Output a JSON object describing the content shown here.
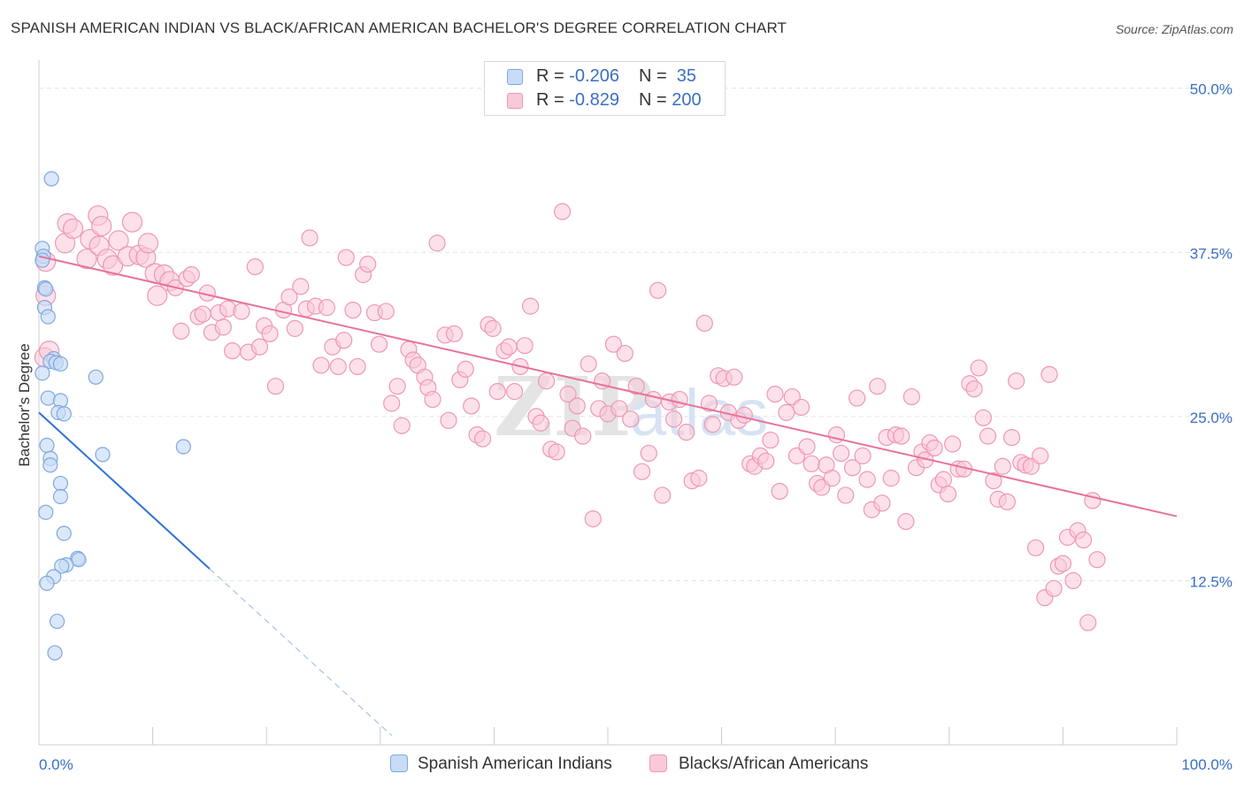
{
  "header": {
    "title": "SPANISH AMERICAN INDIAN VS BLACK/AFRICAN AMERICAN BACHELOR'S DEGREE CORRELATION CHART",
    "source": "Source: ZipAtlas.com"
  },
  "colors": {
    "blue_fill": "#c8dcf6",
    "blue_stroke": "#7fa8e0",
    "blue_line": "#2f72d2",
    "pink_fill": "#f9c9d8",
    "pink_stroke": "#ee98b3",
    "pink_line": "#e8739a",
    "axis_value": "#3a6fc4",
    "grid": "#e2e2e2"
  },
  "legend": {
    "row1": {
      "r_label": "R = ",
      "r_value": "-0.206",
      "n_label": "N = ",
      "n_value": " 35"
    },
    "row2": {
      "r_label": "R = ",
      "r_value": "-0.829",
      "n_label": "N = ",
      "n_value": "200"
    }
  },
  "watermark": {
    "zip": "ZIP",
    "atlas": "atlas"
  },
  "chart_data": {
    "type": "scatter",
    "title": "SPANISH AMERICAN INDIAN VS BLACK/AFRICAN AMERICAN BACHELOR'S DEGREE CORRELATION CHART",
    "ylabel": "Bachelor's Degree",
    "xlabel": "",
    "xlim": [
      0,
      100
    ],
    "ylim": [
      0,
      52
    ],
    "x_tick_labels": [
      "0.0%",
      "100.0%"
    ],
    "y_ticks": [
      12.5,
      25.0,
      37.5,
      50.0
    ],
    "y_tick_labels": [
      "12.5%",
      "25.0%",
      "37.5%",
      "50.0%"
    ],
    "legend_position": "top-center",
    "series": [
      {
        "name": "Spanish American Indians",
        "color": "#7fa8e0",
        "R": -0.206,
        "N": 35,
        "trend": {
          "x0": 0,
          "y0": 25.3,
          "x1": 15,
          "y1": 13.4,
          "dashed_to_x": 31
        },
        "points": [
          [
            1.1,
            43.1
          ],
          [
            0.3,
            37.8
          ],
          [
            0.4,
            37.2
          ],
          [
            0.3,
            36.9
          ],
          [
            0.5,
            34.8
          ],
          [
            0.6,
            34.7
          ],
          [
            0.5,
            33.3
          ],
          [
            0.8,
            32.6
          ],
          [
            1.3,
            29.4
          ],
          [
            1.0,
            29.2
          ],
          [
            1.5,
            29.1
          ],
          [
            1.9,
            29.0
          ],
          [
            0.3,
            28.3
          ],
          [
            5.0,
            28.0
          ],
          [
            0.8,
            26.4
          ],
          [
            1.9,
            26.2
          ],
          [
            1.7,
            25.3
          ],
          [
            2.2,
            25.2
          ],
          [
            0.7,
            22.8
          ],
          [
            12.7,
            22.7
          ],
          [
            5.6,
            22.1
          ],
          [
            1.0,
            21.8
          ],
          [
            1.0,
            21.3
          ],
          [
            1.9,
            19.9
          ],
          [
            1.9,
            18.9
          ],
          [
            0.6,
            17.7
          ],
          [
            2.2,
            16.1
          ],
          [
            3.4,
            14.2
          ],
          [
            3.5,
            14.1
          ],
          [
            2.4,
            13.7
          ],
          [
            2.0,
            13.6
          ],
          [
            1.3,
            12.8
          ],
          [
            0.7,
            12.3
          ],
          [
            1.6,
            9.4
          ],
          [
            1.4,
            7.0
          ]
        ]
      },
      {
        "name": "Blacks/African Americans",
        "color": "#ee98b3",
        "R": -0.829,
        "N": 200,
        "trend": {
          "x0": 0,
          "y0": 37.2,
          "x1": 100,
          "y1": 17.4
        },
        "points": [
          [
            0.6,
            36.8
          ],
          [
            0.6,
            34.2
          ],
          [
            0.5,
            29.5
          ],
          [
            2.3,
            38.2
          ],
          [
            2.5,
            39.7
          ],
          [
            3.0,
            39.3
          ],
          [
            4.2,
            37.0
          ],
          [
            4.5,
            38.5
          ],
          [
            5.2,
            40.3
          ],
          [
            5.5,
            39.5
          ],
          [
            5.3,
            38.0
          ],
          [
            6.0,
            37.0
          ],
          [
            6.5,
            36.5
          ],
          [
            7.0,
            38.4
          ],
          [
            7.8,
            37.2
          ],
          [
            8.2,
            39.8
          ],
          [
            8.8,
            37.3
          ],
          [
            9.4,
            37.1
          ],
          [
            9.6,
            38.2
          ],
          [
            10.2,
            35.9
          ],
          [
            10.4,
            34.2
          ],
          [
            11.0,
            35.8
          ],
          [
            11.5,
            35.3
          ],
          [
            12.0,
            34.8
          ],
          [
            12.5,
            31.5
          ],
          [
            13.0,
            35.5
          ],
          [
            13.4,
            35.8
          ],
          [
            14.0,
            32.6
          ],
          [
            14.4,
            32.8
          ],
          [
            14.8,
            34.4
          ],
          [
            15.2,
            31.4
          ],
          [
            15.8,
            32.9
          ],
          [
            16.2,
            31.8
          ],
          [
            16.6,
            33.2
          ],
          [
            17.0,
            30.0
          ],
          [
            17.8,
            33.0
          ],
          [
            18.4,
            29.9
          ],
          [
            19.0,
            36.4
          ],
          [
            19.4,
            30.3
          ],
          [
            19.8,
            31.9
          ],
          [
            20.3,
            31.3
          ],
          [
            20.8,
            27.3
          ],
          [
            21.5,
            33.1
          ],
          [
            22.0,
            34.1
          ],
          [
            22.5,
            31.7
          ],
          [
            23.0,
            34.9
          ],
          [
            23.5,
            33.2
          ],
          [
            23.8,
            38.6
          ],
          [
            24.3,
            33.4
          ],
          [
            24.8,
            28.9
          ],
          [
            25.3,
            33.3
          ],
          [
            25.8,
            30.3
          ],
          [
            26.3,
            28.8
          ],
          [
            26.8,
            30.8
          ],
          [
            27.0,
            37.1
          ],
          [
            27.6,
            33.1
          ],
          [
            28.0,
            28.8
          ],
          [
            28.5,
            35.8
          ],
          [
            28.9,
            36.6
          ],
          [
            29.5,
            32.9
          ],
          [
            29.9,
            30.5
          ],
          [
            30.5,
            33.0
          ],
          [
            31.0,
            26.0
          ],
          [
            31.5,
            27.3
          ],
          [
            31.9,
            24.3
          ],
          [
            32.5,
            30.1
          ],
          [
            32.9,
            29.3
          ],
          [
            33.3,
            28.9
          ],
          [
            33.9,
            28.0
          ],
          [
            34.2,
            27.2
          ],
          [
            34.6,
            26.3
          ],
          [
            35.0,
            38.2
          ],
          [
            35.7,
            31.2
          ],
          [
            36.0,
            24.7
          ],
          [
            36.5,
            31.3
          ],
          [
            37.0,
            27.8
          ],
          [
            37.5,
            28.6
          ],
          [
            38.0,
            25.8
          ],
          [
            38.5,
            23.6
          ],
          [
            39.0,
            23.3
          ],
          [
            39.5,
            32.0
          ],
          [
            39.9,
            31.7
          ],
          [
            40.3,
            26.9
          ],
          [
            40.9,
            30.0
          ],
          [
            41.3,
            30.3
          ],
          [
            41.8,
            26.9
          ],
          [
            42.3,
            28.8
          ],
          [
            42.7,
            30.4
          ],
          [
            43.2,
            33.4
          ],
          [
            43.7,
            25.0
          ],
          [
            44.1,
            24.5
          ],
          [
            44.6,
            27.7
          ],
          [
            45.0,
            22.5
          ],
          [
            45.5,
            22.3
          ],
          [
            46.0,
            40.6
          ],
          [
            46.5,
            26.7
          ],
          [
            46.9,
            24.1
          ],
          [
            47.3,
            25.8
          ],
          [
            47.8,
            23.5
          ],
          [
            48.3,
            29.0
          ],
          [
            48.7,
            17.2
          ],
          [
            49.2,
            25.6
          ],
          [
            49.5,
            27.7
          ],
          [
            50.0,
            25.2
          ],
          [
            50.5,
            30.5
          ],
          [
            51.0,
            25.6
          ],
          [
            51.5,
            29.8
          ],
          [
            52.0,
            24.8
          ],
          [
            52.5,
            27.3
          ],
          [
            53.0,
            20.8
          ],
          [
            53.6,
            22.2
          ],
          [
            54.0,
            26.3
          ],
          [
            54.4,
            34.6
          ],
          [
            54.8,
            19.0
          ],
          [
            55.4,
            26.1
          ],
          [
            55.8,
            24.8
          ],
          [
            56.3,
            26.3
          ],
          [
            56.9,
            23.8
          ],
          [
            57.4,
            20.1
          ],
          [
            58.0,
            20.3
          ],
          [
            58.5,
            32.1
          ],
          [
            58.9,
            26.0
          ],
          [
            59.2,
            24.4
          ],
          [
            59.7,
            28.1
          ],
          [
            60.2,
            27.9
          ],
          [
            60.6,
            25.3
          ],
          [
            61.1,
            28.0
          ],
          [
            61.5,
            24.7
          ],
          [
            62.0,
            25.1
          ],
          [
            62.5,
            21.4
          ],
          [
            62.9,
            21.2
          ],
          [
            63.4,
            22.0
          ],
          [
            63.9,
            21.6
          ],
          [
            64.3,
            23.2
          ],
          [
            64.7,
            26.7
          ],
          [
            65.1,
            19.3
          ],
          [
            65.7,
            25.3
          ],
          [
            66.2,
            26.5
          ],
          [
            66.6,
            22.0
          ],
          [
            67.0,
            25.7
          ],
          [
            67.5,
            22.7
          ],
          [
            67.9,
            21.4
          ],
          [
            68.4,
            19.9
          ],
          [
            68.8,
            19.6
          ],
          [
            69.2,
            21.3
          ],
          [
            69.7,
            20.3
          ],
          [
            70.1,
            23.6
          ],
          [
            70.5,
            22.2
          ],
          [
            70.9,
            19.0
          ],
          [
            71.5,
            21.1
          ],
          [
            71.9,
            26.4
          ],
          [
            72.4,
            22.0
          ],
          [
            72.8,
            20.2
          ],
          [
            73.2,
            17.9
          ],
          [
            73.7,
            27.3
          ],
          [
            74.1,
            18.4
          ],
          [
            74.5,
            23.4
          ],
          [
            74.9,
            20.3
          ],
          [
            75.3,
            23.6
          ],
          [
            75.8,
            23.5
          ],
          [
            76.2,
            17.0
          ],
          [
            76.7,
            26.5
          ],
          [
            77.1,
            21.1
          ],
          [
            77.6,
            22.3
          ],
          [
            77.9,
            21.7
          ],
          [
            78.3,
            23.0
          ],
          [
            78.7,
            22.6
          ],
          [
            79.1,
            19.8
          ],
          [
            79.5,
            20.2
          ],
          [
            79.9,
            19.1
          ],
          [
            80.3,
            22.9
          ],
          [
            80.8,
            21.0
          ],
          [
            81.3,
            21.0
          ],
          [
            81.8,
            27.5
          ],
          [
            82.2,
            27.1
          ],
          [
            82.6,
            28.7
          ],
          [
            83.0,
            24.9
          ],
          [
            83.4,
            23.5
          ],
          [
            83.9,
            20.1
          ],
          [
            84.3,
            18.7
          ],
          [
            84.7,
            21.2
          ],
          [
            85.1,
            18.5
          ],
          [
            85.5,
            23.4
          ],
          [
            85.9,
            27.7
          ],
          [
            86.3,
            21.5
          ],
          [
            86.7,
            21.3
          ],
          [
            87.2,
            21.2
          ],
          [
            87.6,
            15.0
          ],
          [
            88.0,
            22.0
          ],
          [
            88.4,
            11.2
          ],
          [
            88.8,
            28.2
          ],
          [
            89.2,
            11.9
          ],
          [
            89.6,
            13.6
          ],
          [
            90.0,
            13.8
          ],
          [
            90.4,
            15.8
          ],
          [
            90.9,
            12.5
          ],
          [
            91.3,
            16.3
          ],
          [
            91.8,
            15.6
          ],
          [
            92.2,
            9.3
          ],
          [
            92.6,
            18.6
          ],
          [
            93.0,
            14.1
          ],
          [
            0.9,
            30.0
          ]
        ]
      }
    ]
  },
  "bottom_legend": {
    "item1": "Spanish American Indians",
    "item2": "Blacks/African Americans"
  }
}
